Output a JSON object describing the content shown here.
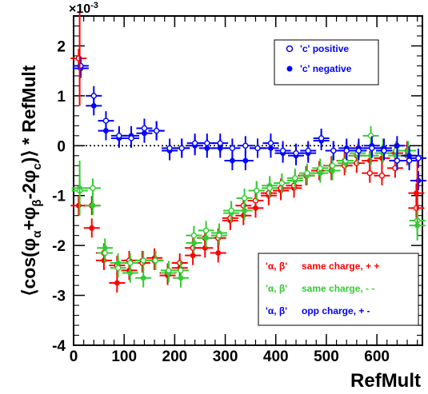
{
  "chart_data": {
    "type": "scatter",
    "xlabel": "RefMult",
    "ylabel": "⟨cos(φα+φβ-2φc)⟩ * RefMult",
    "y_multiplier": "×10-3",
    "xlim": [
      0,
      690
    ],
    "ylim": [
      -4,
      2.6
    ],
    "x_ticks": [
      "0",
      "100",
      "200",
      "300",
      "400",
      "500",
      "600"
    ],
    "y_ticks": [
      "-4",
      "-3",
      "-2",
      "-1",
      "0",
      "1",
      "2"
    ],
    "reference_line": 0,
    "legend_top": {
      "placement": "top-right",
      "entries": [
        {
          "label": "'c' positive",
          "marker": "open-circle",
          "color": "#0000ff"
        },
        {
          "label": "'c' negative",
          "marker": "filled-circle",
          "color": "#0000ff"
        }
      ]
    },
    "legend_bottom": {
      "placement": "bottom-right",
      "entries": [
        {
          "prefix": "'α, β'",
          "label": "same charge, + +",
          "color": "#ff0000"
        },
        {
          "prefix": "'α, β'",
          "label": "same charge, - -",
          "color": "#33cc33"
        },
        {
          "prefix": "'α, β'",
          "label": "opp charge, + -",
          "color": "#0000ff"
        }
      ]
    },
    "series": [
      {
        "color": "#ff0000",
        "x": [
          12,
          38,
          62,
          88,
          112,
          138,
          162,
          188,
          212,
          238,
          262,
          288,
          312,
          338,
          362,
          388,
          412,
          438,
          462,
          488,
          512,
          538,
          562,
          588,
          612,
          638,
          662,
          680
        ],
        "filled": [
          -1.2,
          -1.65,
          -2.3,
          -2.75,
          -2.5,
          -2.3,
          -2.25,
          -2.6,
          -2.45,
          -2.2,
          -2.05,
          -2.15,
          -1.5,
          -1.4,
          -1.25,
          -1.0,
          -0.9,
          -0.85,
          -0.6,
          -0.5,
          -0.4,
          -0.3,
          -0.2,
          -0.3,
          -0.25,
          -0.15,
          -0.1,
          -0.95
        ],
        "open": [
          1.75,
          -1.2,
          -2.15,
          -2.4,
          -2.3,
          -2.35,
          -2.3,
          -2.55,
          -2.35,
          -2.05,
          -1.85,
          -1.85,
          -1.45,
          -1.2,
          -1.1,
          -0.95,
          -0.85,
          -0.8,
          -0.6,
          -0.5,
          -0.5,
          -0.4,
          -0.35,
          -0.55,
          -0.6,
          -0.45,
          -0.2,
          -1.25
        ]
      },
      {
        "color": "#33cc33",
        "x": [
          12,
          38,
          62,
          88,
          112,
          138,
          162,
          188,
          212,
          238,
          262,
          288,
          312,
          338,
          362,
          388,
          412,
          438,
          462,
          488,
          512,
          538,
          562,
          588,
          612,
          638,
          662,
          680
        ],
        "filled": [
          -0.85,
          -1.2,
          -2.05,
          -2.35,
          -2.55,
          -2.65,
          -2.3,
          -2.55,
          -2.65,
          -1.95,
          -1.85,
          -1.75,
          -1.35,
          -1.3,
          -0.9,
          -0.8,
          -0.75,
          -0.7,
          -0.6,
          -0.55,
          -0.5,
          -0.35,
          -0.2,
          -0.2,
          -0.15,
          -0.2,
          -0.1,
          -1.6
        ],
        "open": [
          -0.9,
          -0.85,
          -2.15,
          -2.45,
          -2.35,
          -2.3,
          -2.3,
          -2.5,
          -2.5,
          -1.8,
          -1.7,
          -1.8,
          -1.3,
          -1.05,
          -0.9,
          -0.85,
          -0.75,
          -0.65,
          -0.55,
          -0.45,
          -0.4,
          -0.3,
          -0.15,
          0.2,
          -0.05,
          -0.1,
          -0.2,
          -1.5
        ]
      },
      {
        "color": "#0000ff",
        "x": [
          12,
          38,
          62,
          88,
          112,
          138,
          162,
          188,
          212,
          238,
          262,
          288,
          312,
          338,
          362,
          388,
          412,
          438,
          462,
          488,
          512,
          538,
          562,
          588,
          612,
          638,
          662,
          680
        ],
        "filled": [
          1.55,
          0.8,
          0.3,
          0.15,
          0.2,
          0.25,
          0.3,
          -0.1,
          -0.05,
          0.0,
          -0.05,
          -0.05,
          -0.3,
          -0.3,
          -0.05,
          -0.05,
          -0.15,
          -0.2,
          -0.15,
          0.1,
          -0.1,
          -0.05,
          -0.05,
          0.0,
          -0.05,
          0.0,
          -0.2,
          -0.7
        ],
        "open": [
          1.6,
          1.0,
          0.5,
          0.2,
          0.15,
          0.35,
          0.3,
          -0.05,
          -0.05,
          0.05,
          0.05,
          0.05,
          -0.05,
          0.0,
          -0.05,
          0.05,
          -0.1,
          -0.15,
          -0.1,
          0.15,
          -0.1,
          -0.1,
          -0.1,
          -0.05,
          -0.1,
          -0.3,
          -0.3,
          -0.25
        ]
      }
    ]
  }
}
